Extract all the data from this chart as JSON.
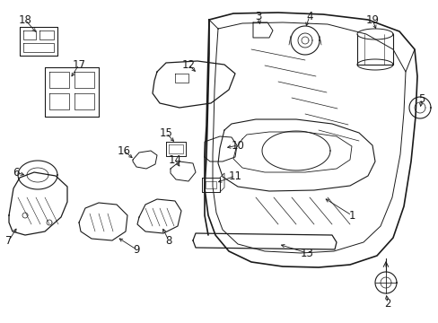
{
  "bg_color": "#ffffff",
  "line_color": "#1a1a1a",
  "label_fontsize": 8.5,
  "fig_width": 4.89,
  "fig_height": 3.6,
  "dpi": 100
}
